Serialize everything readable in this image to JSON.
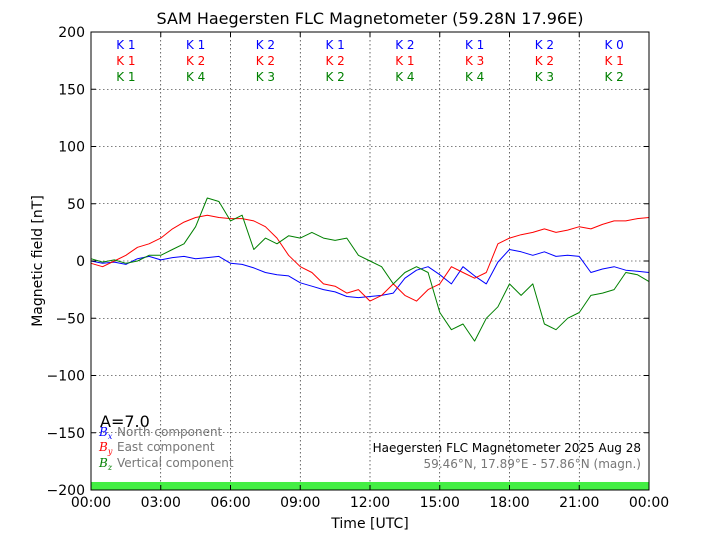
{
  "chart_data": {
    "type": "line",
    "title": "SAM Haegersten FLC Magnetometer (59.28N 17.96E)",
    "xlabel": "Time [UTC]",
    "ylabel": "Magnetic field [nT]",
    "xlim": [
      0,
      24
    ],
    "ylim": [
      -200,
      200
    ],
    "grid": true,
    "x_ticks": [
      {
        "value": 0,
        "label": "00:00"
      },
      {
        "value": 3,
        "label": "03:00"
      },
      {
        "value": 6,
        "label": "06:00"
      },
      {
        "value": 9,
        "label": "09:00"
      },
      {
        "value": 12,
        "label": "12:00"
      },
      {
        "value": 15,
        "label": "15:00"
      },
      {
        "value": 18,
        "label": "18:00"
      },
      {
        "value": 21,
        "label": "21:00"
      },
      {
        "value": 24,
        "label": "00:00"
      }
    ],
    "y_ticks": [
      {
        "value": 200,
        "label": "200"
      },
      {
        "value": 150,
        "label": "150"
      },
      {
        "value": 100,
        "label": "100"
      },
      {
        "value": 50,
        "label": "50"
      },
      {
        "value": 0,
        "label": "0"
      },
      {
        "value": -50,
        "label": "−50"
      },
      {
        "value": -100,
        "label": "−100"
      },
      {
        "value": -150,
        "label": "−150"
      },
      {
        "value": -200,
        "label": "−200"
      }
    ],
    "k_index_blocks": [
      {
        "x": 1.5,
        "rows": [
          "K 1",
          "K 1",
          "K 1"
        ]
      },
      {
        "x": 4.5,
        "rows": [
          "K 1",
          "K 2",
          "K 4"
        ]
      },
      {
        "x": 7.5,
        "rows": [
          "K 2",
          "K 2",
          "K 3"
        ]
      },
      {
        "x": 10.5,
        "rows": [
          "K 1",
          "K 2",
          "K 2"
        ]
      },
      {
        "x": 13.5,
        "rows": [
          "K 2",
          "K 1",
          "K 4"
        ]
      },
      {
        "x": 16.5,
        "rows": [
          "K 1",
          "K 3",
          "K 4"
        ]
      },
      {
        "x": 19.5,
        "rows": [
          "K 2",
          "K 2",
          "K 3"
        ]
      },
      {
        "x": 22.5,
        "rows": [
          "K 0",
          "K 1",
          "K 2"
        ]
      }
    ],
    "k_row_colors": [
      "#0000ff",
      "#ff0000",
      "#008000"
    ],
    "a_index_label": "A=7.0",
    "status_band": {
      "from": -200,
      "to": -193,
      "color": "#44ee44"
    },
    "info_title": "Haegersten FLC Magnetometer 2025 Aug 28",
    "info_subtitle": "59.46°N, 17.89°E - 57.86°N (magn.)",
    "legend_placement": "bottom-left",
    "series": [
      {
        "name": "North component",
        "symbol": "B",
        "subscript": "x",
        "color": "#0000ff",
        "x": [
          0,
          0.5,
          1,
          1.5,
          2,
          2.5,
          3,
          3.5,
          4,
          4.5,
          5,
          5.5,
          6,
          6.5,
          7,
          7.5,
          8,
          8.5,
          9,
          9.5,
          10,
          10.5,
          11,
          11.5,
          12,
          12.5,
          13,
          13.5,
          14,
          14.5,
          15,
          15.5,
          16,
          16.5,
          17,
          17.5,
          18,
          18.5,
          19,
          19.5,
          20,
          20.5,
          21,
          21.5,
          22,
          22.5,
          23,
          23.5,
          24
        ],
        "values": [
          0,
          -2,
          -1,
          -3,
          2,
          4,
          1,
          3,
          4,
          2,
          3,
          4,
          -2,
          -3,
          -6,
          -10,
          -12,
          -13,
          -19,
          -22,
          -25,
          -27,
          -31,
          -32,
          -31,
          -30,
          -28,
          -15,
          -8,
          -5,
          -12,
          -20,
          -5,
          -13,
          -20,
          -1,
          10,
          8,
          5,
          8,
          4,
          5,
          4,
          -10,
          -7,
          -5,
          -8,
          -9,
          -10
        ]
      },
      {
        "name": "East component",
        "symbol": "B",
        "subscript": "y",
        "color": "#ff0000",
        "x": [
          0,
          0.5,
          1,
          1.5,
          2,
          2.5,
          3,
          3.5,
          4,
          4.5,
          5,
          5.5,
          6,
          6.5,
          7,
          7.5,
          8,
          8.5,
          9,
          9.5,
          10,
          10.5,
          11,
          11.5,
          12,
          12.5,
          13,
          13.5,
          14,
          14.5,
          15,
          15.5,
          16,
          16.5,
          17,
          17.5,
          18,
          18.5,
          19,
          19.5,
          20,
          20.5,
          21,
          21.5,
          22,
          22.5,
          23,
          23.5,
          24
        ],
        "values": [
          -2,
          -5,
          0,
          5,
          12,
          15,
          20,
          28,
          34,
          38,
          40,
          38,
          37,
          37,
          35,
          30,
          20,
          5,
          -5,
          -10,
          -20,
          -22,
          -28,
          -25,
          -35,
          -30,
          -20,
          -30,
          -35,
          -25,
          -20,
          -5,
          -10,
          -15,
          -10,
          15,
          20,
          23,
          25,
          28,
          25,
          27,
          30,
          28,
          32,
          35,
          35,
          37,
          38
        ]
      },
      {
        "name": "Vertical component",
        "symbol": "B",
        "subscript": "z",
        "color": "#008000",
        "x": [
          0,
          0.5,
          1,
          1.5,
          2,
          2.5,
          3,
          3.5,
          4,
          4.5,
          5,
          5.5,
          6,
          6.5,
          7,
          7.5,
          8,
          8.5,
          9,
          9.5,
          10,
          10.5,
          11,
          11.5,
          12,
          12.5,
          13,
          13.5,
          14,
          14.5,
          15,
          15.5,
          16,
          16.5,
          17,
          17.5,
          18,
          18.5,
          19,
          19.5,
          20,
          20.5,
          21,
          21.5,
          22,
          22.5,
          23,
          23.5,
          24
        ],
        "values": [
          2,
          -1,
          1,
          -2,
          0,
          5,
          5,
          10,
          15,
          30,
          55,
          52,
          35,
          40,
          10,
          20,
          15,
          22,
          20,
          25,
          20,
          18,
          20,
          5,
          0,
          -5,
          -20,
          -10,
          -5,
          -10,
          -45,
          -60,
          -55,
          -70,
          -50,
          -40,
          -20,
          -30,
          -20,
          -55,
          -60,
          -50,
          -45,
          -30,
          -28,
          -25,
          -10,
          -12,
          -18
        ]
      }
    ]
  }
}
